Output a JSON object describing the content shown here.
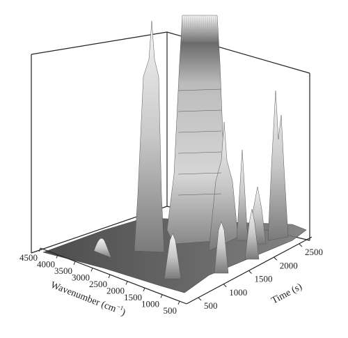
{
  "chart_data": {
    "type": "surface-3d",
    "xlabel_main": "Wavenumber (cm",
    "xlabel_sup": "−1",
    "xlabel_end": ")",
    "ylabel": "Time (s)",
    "title": "",
    "wavenumber_ticks": [
      "4500",
      "4000",
      "3500",
      "3000",
      "2500",
      "2000",
      "1500",
      "1000",
      "500"
    ],
    "time_ticks": [
      "500",
      "1000",
      "1500",
      "2000",
      "2500"
    ],
    "wavenumber_range": [
      4500,
      500
    ],
    "time_range": [
      0,
      2500
    ],
    "grid": false,
    "colors": {
      "peak_top": "#f4f4f4",
      "peak_body": "#a8a8a8",
      "base": "#4a4a4a",
      "frame": "#222222"
    },
    "peaks": [
      {
        "wavenumber": 3700,
        "time_range": [
          200,
          900
        ],
        "relative_height": 0.05,
        "label": ""
      },
      {
        "wavenumber": 2950,
        "time_range": [
          200,
          1800
        ],
        "relative_height": 0.95,
        "label": ""
      },
      {
        "wavenumber": 2350,
        "time_range": [
          150,
          2300
        ],
        "relative_height": 1.0,
        "label": ""
      },
      {
        "wavenumber": 1750,
        "time_range": [
          200,
          2000
        ],
        "relative_height": 0.45,
        "label": ""
      },
      {
        "wavenumber": 1300,
        "time_range": [
          300,
          1500
        ],
        "relative_height": 0.3,
        "label": ""
      },
      {
        "wavenumber": 1050,
        "time_range": [
          300,
          2000
        ],
        "relative_height": 0.4,
        "label": ""
      },
      {
        "wavenumber": 700,
        "time_range": [
          250,
          1500
        ],
        "relative_height": 0.4,
        "label": ""
      }
    ]
  }
}
